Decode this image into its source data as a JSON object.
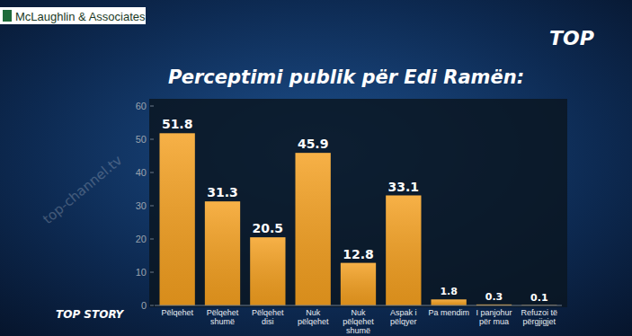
{
  "chart_data": {
    "type": "bar",
    "title": "Perceptimi publik për Edi Ramën:",
    "categories": [
      "Pëlqehet",
      "Pëlqehet shumë",
      "Pëlqehet disi",
      "Nuk pëlqehet",
      "Nuk pëlqehet shumë",
      "Aspak i pëlqyer",
      "Pa mendim",
      "I panjohur për mua",
      "Refuzoi të përgjigjet"
    ],
    "values": [
      51.8,
      31.3,
      20.5,
      45.9,
      12.8,
      33.1,
      1.8,
      0.3,
      0.1
    ],
    "color": "#f5a01f",
    "ylim": [
      0,
      60
    ],
    "yticks": [
      0,
      10,
      20,
      30,
      40,
      50,
      60
    ],
    "grid": false,
    "data_labels": true,
    "annotations": [
      "McLaughlin & Associates",
      "TOP",
      "TOP STORY",
      "top-channel.tv"
    ]
  }
}
